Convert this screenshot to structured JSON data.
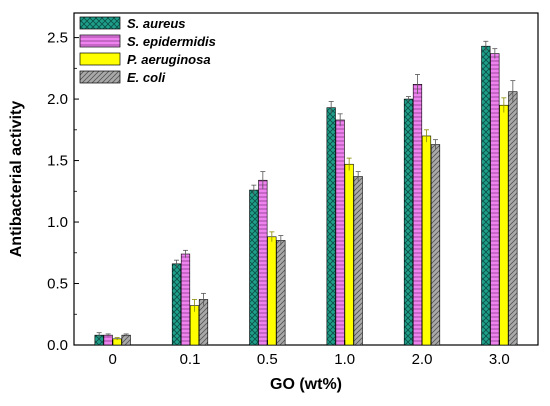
{
  "chart_data": {
    "type": "bar",
    "title": "",
    "xlabel": "GO (wt%)",
    "ylabel": "Antibacterial activity",
    "categories": [
      "0",
      "0.1",
      "0.5",
      "1.0",
      "2.0",
      "3.0"
    ],
    "ylim": [
      0,
      2.7
    ],
    "yticks": [
      "0.0",
      "0.5",
      "1.0",
      "1.5",
      "2.0",
      "2.5"
    ],
    "legend_position": "top-left",
    "grid": false,
    "series": [
      {
        "name": "S. aureus",
        "color": "#1f9e8a",
        "pattern": "crosshatch",
        "values": [
          0.08,
          0.66,
          1.26,
          1.93,
          2.0,
          2.43
        ],
        "errors": [
          0.02,
          0.03,
          0.04,
          0.05,
          0.02,
          0.04
        ]
      },
      {
        "name": "S. epidermidis",
        "color": "#ee82ee",
        "pattern": "horizontal-lines",
        "values": [
          0.08,
          0.74,
          1.34,
          1.83,
          2.12,
          2.37
        ],
        "errors": [
          0.01,
          0.03,
          0.07,
          0.05,
          0.08,
          0.04
        ]
      },
      {
        "name": "P. aeruginosa",
        "color": "#ffff00",
        "pattern": "solid",
        "values": [
          0.05,
          0.32,
          0.88,
          1.47,
          1.7,
          1.95
        ],
        "errors": [
          0.01,
          0.05,
          0.04,
          0.05,
          0.05,
          0.06
        ]
      },
      {
        "name": "E. coli",
        "color": "#a9a9a9",
        "pattern": "diagonal-lines",
        "values": [
          0.08,
          0.37,
          0.85,
          1.37,
          1.63,
          2.06
        ],
        "errors": [
          0.01,
          0.05,
          0.04,
          0.04,
          0.04,
          0.09
        ]
      }
    ]
  }
}
